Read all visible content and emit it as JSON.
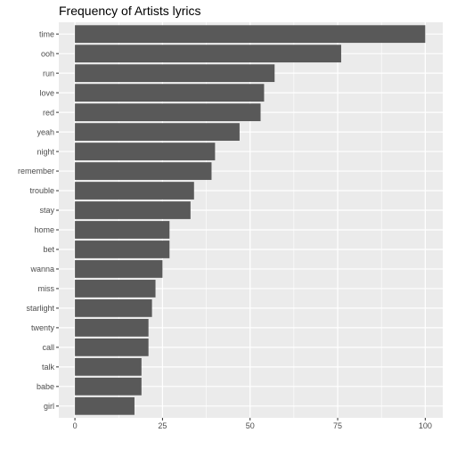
{
  "chart_data": {
    "type": "bar",
    "orientation": "horizontal",
    "title": "Frequency of Artists lyrics",
    "xlabel": "",
    "ylabel": "",
    "categories": [
      "time",
      "ooh",
      "run",
      "love",
      "red",
      "yeah",
      "night",
      "remember",
      "trouble",
      "stay",
      "home",
      "bet",
      "wanna",
      "miss",
      "starlight",
      "twenty",
      "call",
      "talk",
      "babe",
      "girl"
    ],
    "values": [
      100,
      76,
      57,
      54,
      53,
      47,
      40,
      39,
      34,
      33,
      27,
      27,
      25,
      23,
      22,
      21,
      21,
      19,
      19,
      17
    ],
    "xlim": [
      -4.6,
      105
    ],
    "xticks": [
      0,
      25,
      50,
      75,
      100
    ],
    "grid": true,
    "colors": {
      "bar": "#595959",
      "panel": "#ebebeb",
      "grid": "#ffffff",
      "text": "#4d4d4d"
    }
  }
}
